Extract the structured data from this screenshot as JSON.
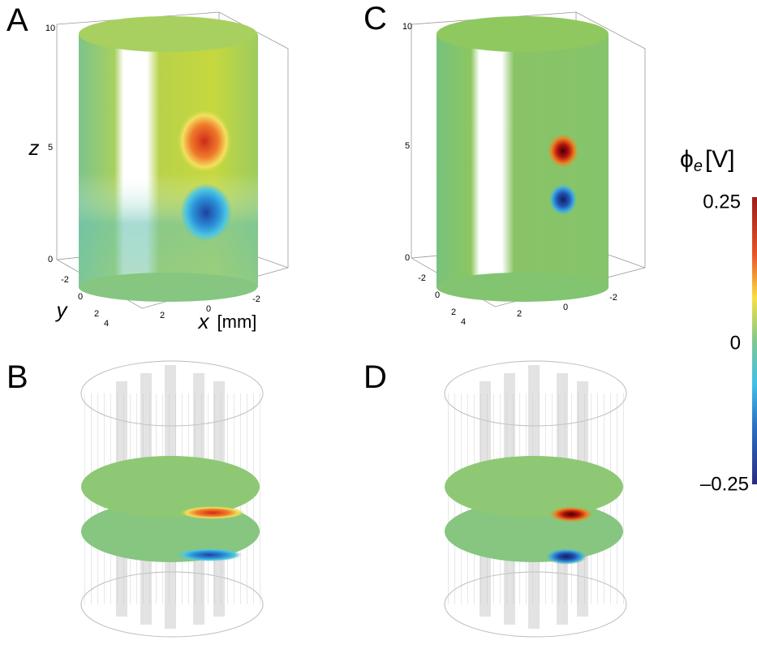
{
  "panels": [
    {
      "label": "A",
      "z_ticks": [
        "10",
        "5",
        "0"
      ],
      "y_ticks": [
        "-2",
        "0",
        "2",
        "4"
      ],
      "x_ticks": [
        "2",
        "0",
        "-2"
      ],
      "z_label": "z",
      "y_label": "y",
      "x_label": "x",
      "x_unit": "[mm]"
    },
    {
      "label": "B"
    },
    {
      "label": "C",
      "z_ticks": [
        "10",
        "5",
        "0"
      ],
      "y_ticks": [
        "-2",
        "0",
        "2",
        "4"
      ],
      "x_ticks": [
        "2",
        "0",
        "-2"
      ]
    },
    {
      "label": "D"
    }
  ],
  "colorbar": {
    "symbol": "ϕ",
    "subscript": "e",
    "unit": "[V]",
    "ticks": [
      "0.25",
      "0",
      "–0.25"
    ]
  }
}
